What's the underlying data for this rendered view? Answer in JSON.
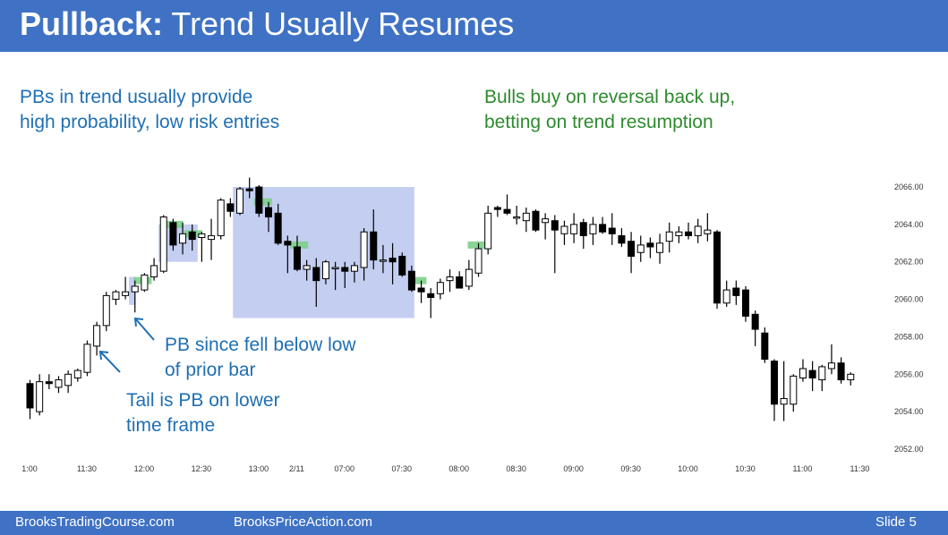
{
  "slide": {
    "title_bold": "Pullback:",
    "title_rest": " Trend Usually Resumes",
    "note_left_line1": "PBs in trend usually provide",
    "note_left_line2": "high probability, low risk entries",
    "note_right_line1": "Bulls buy on reversal back up,",
    "note_right_line2": "betting on trend resumption",
    "annotation_pb_line1": "PB since fell below low",
    "annotation_pb_line2": "of prior bar",
    "annotation_tail_line1": "Tail is PB on lower",
    "annotation_tail_line2": "time frame",
    "footer_left": "BrooksTradingCourse.com",
    "footer_center": "BrooksPriceAction.com",
    "footer_right": "Slide  5"
  },
  "colors": {
    "header_bg": "#3f72c4",
    "highlight_box": "#b8c6ee",
    "entry_marker": "#7dcf8a",
    "text_blue": "#1f6fb3",
    "text_green": "#2e8b2e"
  },
  "chart_data": {
    "type": "candlestick",
    "y_ticks": [
      "2066.00",
      "2064.00",
      "2062.00",
      "2060.00",
      "2058.00",
      "2056.00",
      "2054.00",
      "2052.00"
    ],
    "ylim": [
      2052,
      2066
    ],
    "x_ticks": [
      "1:00",
      "11:30",
      "12:00",
      "12:30",
      "13:00",
      "2/11",
      "07:00",
      "07:30",
      "08:00",
      "08:30",
      "09:00",
      "09:30",
      "10:00",
      "10:30",
      "11:00",
      "11:30"
    ],
    "x_tick_bar_index": [
      0,
      6,
      12,
      18,
      24,
      28,
      33,
      39,
      45,
      51,
      57,
      63,
      69,
      75,
      81,
      87
    ],
    "bars": [
      [
        2055.5,
        2055.7,
        2053.6,
        2054.2
      ],
      [
        2054.0,
        2056.0,
        2053.8,
        2055.6
      ],
      [
        2055.6,
        2056.0,
        2055.2,
        2055.5
      ],
      [
        2055.3,
        2055.9,
        2055.0,
        2055.7
      ],
      [
        2055.4,
        2056.2,
        2055.0,
        2056.0
      ],
      [
        2055.8,
        2056.3,
        2055.6,
        2056.2
      ],
      [
        2056.1,
        2057.8,
        2055.9,
        2057.6
      ],
      [
        2057.5,
        2058.8,
        2057.0,
        2058.6
      ],
      [
        2058.6,
        2060.4,
        2058.3,
        2060.2
      ],
      [
        2060.0,
        2060.5,
        2059.7,
        2060.4
      ],
      [
        2060.2,
        2061.2,
        2060.0,
        2060.4
      ],
      [
        2060.4,
        2061.0,
        2059.3,
        2060.7
      ],
      [
        2060.5,
        2061.4,
        2060.4,
        2061.3
      ],
      [
        2061.2,
        2062.2,
        2061.0,
        2061.8
      ],
      [
        2061.5,
        2064.5,
        2061.4,
        2064.4
      ],
      [
        2064.1,
        2064.3,
        2062.6,
        2062.9
      ],
      [
        2063.0,
        2064.1,
        2062.4,
        2063.5
      ],
      [
        2063.6,
        2064.0,
        2062.6,
        2063.2
      ],
      [
        2063.3,
        2063.6,
        2062.0,
        2063.5
      ],
      [
        2063.2,
        2064.3,
        2062.1,
        2063.4
      ],
      [
        2063.4,
        2065.4,
        2063.2,
        2065.3
      ],
      [
        2065.1,
        2065.4,
        2064.4,
        2064.7
      ],
      [
        2064.6,
        2066.0,
        2064.5,
        2065.9
      ],
      [
        2065.9,
        2066.5,
        2065.4,
        2065.8
      ],
      [
        2066.0,
        2066.1,
        2064.4,
        2064.6
      ],
      [
        2064.9,
        2065.2,
        2063.6,
        2064.4
      ],
      [
        2064.6,
        2065.1,
        2062.9,
        2063.0
      ],
      [
        2063.1,
        2063.4,
        2061.4,
        2062.9
      ],
      [
        2062.8,
        2063.4,
        2061.5,
        2061.6
      ],
      [
        2061.6,
        2062.1,
        2061.0,
        2061.8
      ],
      [
        2061.7,
        2062.2,
        2059.6,
        2061.0
      ],
      [
        2061.1,
        2062.1,
        2060.8,
        2062.0
      ],
      [
        2061.7,
        2062.0,
        2060.5,
        2061.7
      ],
      [
        2061.7,
        2062.0,
        2060.6,
        2061.5
      ],
      [
        2061.5,
        2062.0,
        2060.9,
        2061.8
      ],
      [
        2061.7,
        2063.8,
        2061.0,
        2063.6
      ],
      [
        2063.6,
        2064.8,
        2061.6,
        2062.1
      ],
      [
        2062.1,
        2062.9,
        2061.4,
        2062.1
      ],
      [
        2062.2,
        2063.0,
        2060.8,
        2062.0
      ],
      [
        2062.3,
        2062.5,
        2061.2,
        2061.3
      ],
      [
        2061.5,
        2061.8,
        2060.4,
        2060.5
      ],
      [
        2060.6,
        2061.0,
        2059.8,
        2060.4
      ],
      [
        2060.3,
        2060.6,
        2059.0,
        2060.1
      ],
      [
        2060.3,
        2061.1,
        2060.0,
        2060.9
      ],
      [
        2061.0,
        2061.6,
        2060.4,
        2061.2
      ],
      [
        2061.2,
        2061.5,
        2060.6,
        2060.6
      ],
      [
        2060.7,
        2062.1,
        2060.5,
        2061.6
      ],
      [
        2061.4,
        2063.0,
        2061.2,
        2062.7
      ],
      [
        2062.7,
        2065.0,
        2062.4,
        2064.6
      ],
      [
        2064.9,
        2065.0,
        2064.4,
        2064.8
      ],
      [
        2064.8,
        2065.6,
        2064.5,
        2064.6
      ],
      [
        2064.4,
        2065.0,
        2064.0,
        2064.4
      ],
      [
        2064.2,
        2064.9,
        2063.6,
        2064.6
      ],
      [
        2064.7,
        2064.8,
        2063.6,
        2063.7
      ],
      [
        2064.1,
        2064.6,
        2063.2,
        2064.3
      ],
      [
        2064.2,
        2064.5,
        2061.4,
        2063.7
      ],
      [
        2063.5,
        2064.2,
        2062.9,
        2063.9
      ],
      [
        2063.5,
        2064.6,
        2063.0,
        2064.0
      ],
      [
        2064.1,
        2064.3,
        2062.7,
        2063.4
      ],
      [
        2063.5,
        2064.4,
        2062.9,
        2064.0
      ],
      [
        2064.0,
        2064.4,
        2063.5,
        2063.6
      ],
      [
        2063.8,
        2064.6,
        2062.9,
        2063.5
      ],
      [
        2063.4,
        2063.8,
        2062.8,
        2063.0
      ],
      [
        2063.1,
        2063.6,
        2061.4,
        2062.3
      ],
      [
        2062.5,
        2063.4,
        2062.0,
        2062.9
      ],
      [
        2063.0,
        2063.3,
        2062.2,
        2062.8
      ],
      [
        2062.5,
        2063.5,
        2061.9,
        2063.0
      ],
      [
        2063.1,
        2064.1,
        2062.5,
        2063.6
      ],
      [
        2063.4,
        2063.9,
        2063.0,
        2063.6
      ],
      [
        2063.6,
        2064.1,
        2063.2,
        2063.4
      ],
      [
        2063.4,
        2064.3,
        2063.0,
        2063.9
      ],
      [
        2063.5,
        2064.6,
        2063.1,
        2063.7
      ],
      [
        2063.6,
        2063.7,
        2059.5,
        2059.8
      ],
      [
        2059.8,
        2061.0,
        2059.6,
        2060.5
      ],
      [
        2060.6,
        2061.0,
        2059.7,
        2060.2
      ],
      [
        2060.5,
        2060.7,
        2058.8,
        2059.1
      ],
      [
        2059.2,
        2059.4,
        2057.5,
        2058.4
      ],
      [
        2058.2,
        2058.5,
        2056.6,
        2056.8
      ],
      [
        2056.7,
        2056.8,
        2053.5,
        2054.4
      ],
      [
        2054.4,
        2056.7,
        2053.5,
        2054.7
      ],
      [
        2054.4,
        2056.0,
        2054.0,
        2055.9
      ],
      [
        2055.8,
        2056.8,
        2055.6,
        2056.3
      ],
      [
        2056.2,
        2056.7,
        2055.1,
        2055.8
      ],
      [
        2055.7,
        2056.5,
        2055.1,
        2056.4
      ],
      [
        2056.3,
        2057.6,
        2056.0,
        2056.6
      ],
      [
        2056.6,
        2056.9,
        2055.5,
        2055.7
      ],
      [
        2055.7,
        2056.1,
        2055.4,
        2056.0
      ]
    ]
  }
}
